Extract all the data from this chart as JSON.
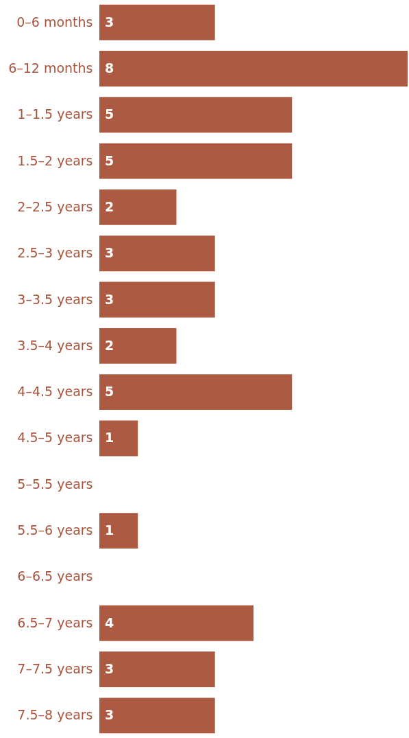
{
  "chart_data": {
    "type": "bar",
    "orientation": "horizontal",
    "categories": [
      "0–6 months",
      "6–12 months",
      "1–1.5 years",
      "1.5–2 years",
      "2–2.5 years",
      "2.5–3 years",
      "3–3.5 years",
      "3.5–4 years",
      "4–4.5 years",
      "4.5–5 years",
      "5–5.5 years",
      "5.5–6 years",
      "6–6.5 years",
      "6.5–7 years",
      "7–7.5 years",
      "7.5–8 years"
    ],
    "values": [
      3,
      8,
      5,
      5,
      2,
      3,
      3,
      2,
      5,
      1,
      0,
      1,
      0,
      4,
      3,
      3
    ],
    "value_labels": [
      "3",
      "8",
      "5",
      "5",
      "2",
      "3",
      "3",
      "2",
      "5",
      "1",
      null,
      "1",
      null,
      "4",
      "3",
      "3"
    ],
    "color": "#ad5a43"
  }
}
